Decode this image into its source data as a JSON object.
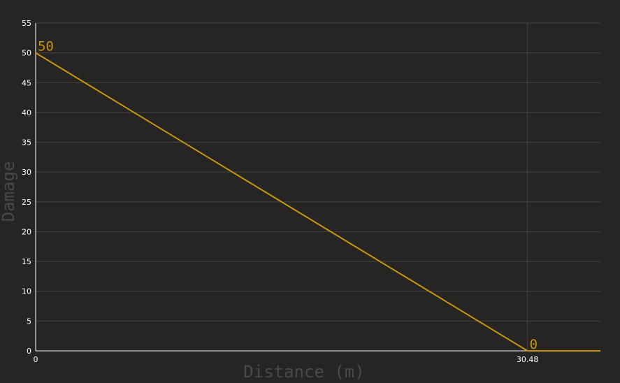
{
  "chart_data": {
    "type": "line",
    "xlabel": "Distance (m)",
    "ylabel": "Damage",
    "xlim": [
      0,
      35
    ],
    "ylim": [
      0,
      55
    ],
    "x_ticks": [
      "0",
      "30.48"
    ],
    "y_ticks": [
      "0",
      "5",
      "10",
      "15",
      "20",
      "25",
      "30",
      "35",
      "40",
      "45",
      "50",
      "55"
    ],
    "grid": true,
    "series": [
      {
        "x": [
          0,
          30.48,
          35
        ],
        "y": [
          50,
          0,
          0
        ],
        "color": "#c8960c"
      }
    ],
    "annotations": [
      {
        "x": 0,
        "y": 50,
        "text": "50"
      },
      {
        "x": 30.48,
        "y": 0,
        "text": "0"
      }
    ],
    "colors": {
      "background": "#262523",
      "grid": "#444340",
      "axis": "#ffffff",
      "axis_label": "#4a4946"
    }
  }
}
